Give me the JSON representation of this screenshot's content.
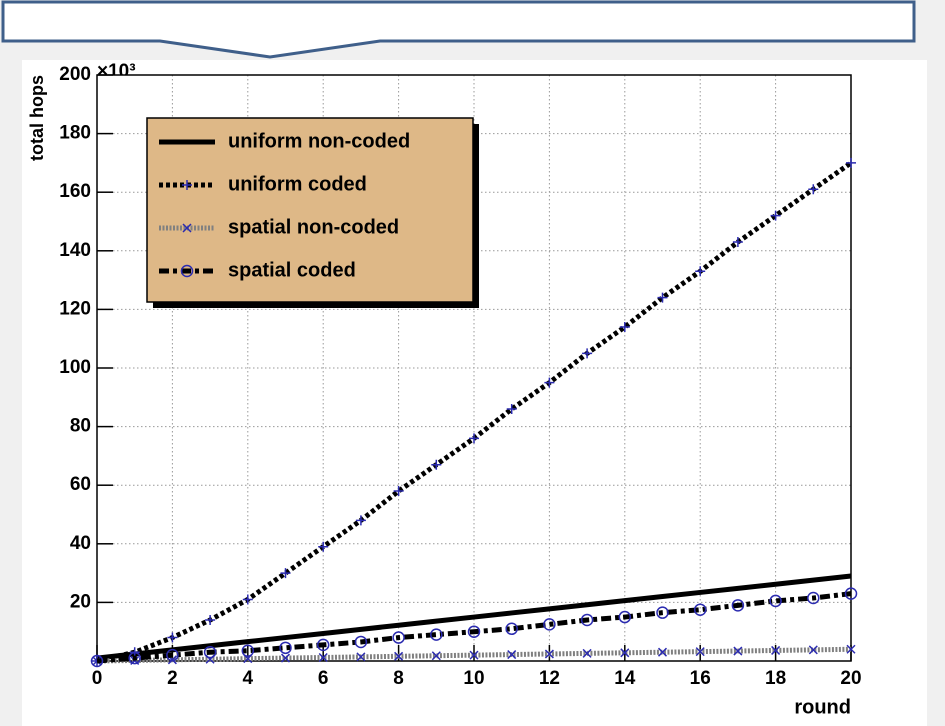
{
  "chart_data": {
    "type": "line",
    "x_label": "round",
    "y_label": "total hops",
    "y_multiplier": "×10³",
    "x": [
      0,
      1,
      2,
      3,
      4,
      5,
      6,
      7,
      8,
      9,
      10,
      11,
      12,
      13,
      14,
      15,
      16,
      17,
      18,
      19,
      20
    ],
    "series": [
      {
        "name": "uniform non-coded",
        "color": "#000000",
        "line_style": "solid",
        "marker": "none",
        "marker_color": "#000000",
        "values": [
          1,
          2.4,
          3.8,
          5.2,
          6.6,
          8,
          9.4,
          10.8,
          12.2,
          13.6,
          15,
          16.4,
          17.8,
          19.2,
          20.6,
          22,
          23.4,
          24.8,
          26.2,
          27.6,
          29
        ]
      },
      {
        "name": "uniform coded",
        "color": "#000000",
        "line_style": "dotted",
        "marker": "plus",
        "marker_color": "#2b2bb0",
        "values": [
          0,
          3,
          8,
          14,
          21,
          30,
          39,
          48,
          58,
          67,
          76,
          86,
          95,
          105,
          114,
          124,
          133,
          143,
          152,
          161,
          170
        ]
      },
      {
        "name": "spatial non-coded",
        "color": "#808080",
        "line_style": "dashed",
        "marker": "cross",
        "marker_color": "#2b2bb0",
        "values": [
          0,
          0.2,
          0.4,
          0.6,
          0.8,
          1,
          1.2,
          1.4,
          1.6,
          1.8,
          2,
          2.2,
          2.4,
          2.6,
          2.8,
          3,
          3.2,
          3.4,
          3.6,
          3.8,
          4
        ]
      },
      {
        "name": "spatial coded",
        "color": "#000000",
        "line_style": "dashdot",
        "marker": "circle",
        "marker_color": "#2b2bb0",
        "values": [
          0,
          1,
          2,
          3,
          3.5,
          4.5,
          5.5,
          6.5,
          8,
          9,
          10,
          11,
          12.5,
          14,
          15,
          16.5,
          17.5,
          19,
          20.5,
          21.5,
          23
        ]
      }
    ],
    "xlim": [
      0,
      20
    ],
    "ylim": [
      0,
      200
    ],
    "xticks": [
      0,
      2,
      4,
      6,
      8,
      10,
      12,
      14,
      16,
      18,
      20
    ],
    "yticks": [
      20,
      40,
      60,
      80,
      100,
      120,
      140,
      160,
      180,
      200
    ],
    "grid": true,
    "legend_position": "upper-left",
    "legend_color": "#deb887"
  }
}
